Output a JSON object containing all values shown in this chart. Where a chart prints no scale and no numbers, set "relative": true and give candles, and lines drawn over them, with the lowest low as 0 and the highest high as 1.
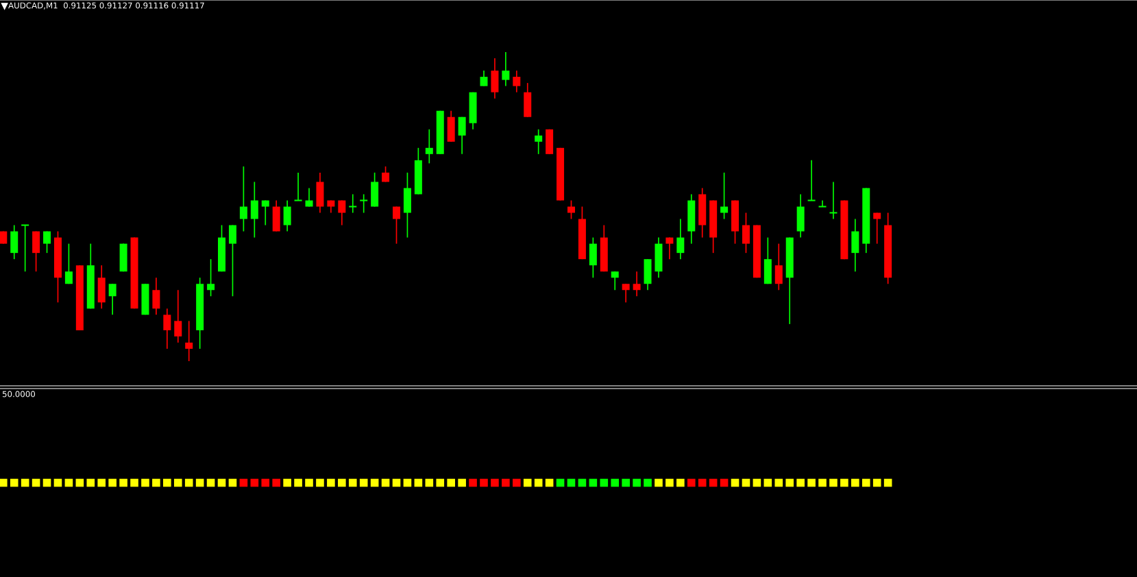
{
  "chart_data": [
    {
      "type": "candlestick",
      "title": "AUDCAD,M1  0.91125 0.91127 0.91116 0.91117",
      "relative": true,
      "categories": [
        null,
        null,
        null,
        null,
        null,
        null,
        null,
        null,
        null,
        null,
        null,
        null,
        null,
        null,
        null,
        null,
        null,
        null,
        null,
        null,
        null,
        null,
        null,
        null,
        null,
        null,
        null,
        null,
        null,
        null,
        null,
        null,
        null,
        null,
        null,
        null,
        null,
        null,
        null,
        null,
        null,
        null,
        null,
        null,
        null,
        null,
        null,
        null,
        null,
        null,
        null,
        null,
        null,
        null,
        null,
        null,
        null,
        null,
        null,
        null,
        null,
        null,
        null,
        null,
        null,
        null,
        null,
        null,
        null,
        null,
        null,
        null,
        null,
        null,
        null,
        null,
        null,
        null,
        null,
        null,
        null,
        null
      ],
      "ohlc": [
        [
          0.42,
          0.42,
          0.38,
          0.38
        ],
        [
          0.35,
          0.44,
          0.33,
          0.42
        ],
        [
          0.44,
          0.44,
          0.29,
          0.44
        ],
        [
          0.42,
          0.42,
          0.29,
          0.35
        ],
        [
          0.38,
          0.42,
          0.35,
          0.42
        ],
        [
          0.4,
          0.42,
          0.19,
          0.27
        ],
        [
          0.25,
          0.38,
          0.25,
          0.29
        ],
        [
          0.31,
          0.31,
          0.1,
          0.1
        ],
        [
          0.17,
          0.38,
          0.17,
          0.31
        ],
        [
          0.27,
          0.31,
          0.17,
          0.19
        ],
        [
          0.21,
          0.25,
          0.15,
          0.25
        ],
        [
          0.29,
          0.38,
          0.29,
          0.38
        ],
        [
          0.4,
          0.4,
          0.17,
          0.17
        ],
        [
          0.15,
          0.25,
          0.15,
          0.25
        ],
        [
          0.23,
          0.27,
          0.15,
          0.17
        ],
        [
          0.15,
          0.17,
          0.04,
          0.1
        ],
        [
          0.13,
          0.23,
          0.06,
          0.08
        ],
        [
          0.06,
          0.13,
          0,
          0.04
        ],
        [
          0.1,
          0.27,
          0.04,
          0.25
        ],
        [
          0.23,
          0.33,
          0.21,
          0.25
        ],
        [
          0.29,
          0.44,
          0.29,
          0.4
        ],
        [
          0.38,
          0.44,
          0.21,
          0.44
        ],
        [
          0.46,
          0.63,
          0.42,
          0.5
        ],
        [
          0.46,
          0.58,
          0.4,
          0.52
        ],
        [
          0.5,
          0.52,
          0.44,
          0.52
        ],
        [
          0.5,
          0.52,
          0.42,
          0.42
        ],
        [
          0.44,
          0.52,
          0.42,
          0.5
        ],
        [
          0.52,
          0.61,
          0.52,
          0.52
        ],
        [
          0.5,
          0.56,
          0.5,
          0.52
        ],
        [
          0.58,
          0.61,
          0.48,
          0.5
        ],
        [
          0.52,
          0.52,
          0.48,
          0.5
        ],
        [
          0.52,
          0.52,
          0.44,
          0.48
        ],
        [
          0.5,
          0.54,
          0.48,
          0.5
        ],
        [
          0.52,
          0.54,
          0.48,
          0.52
        ],
        [
          0.5,
          0.61,
          0.5,
          0.58
        ],
        [
          0.61,
          0.63,
          0.58,
          0.58
        ],
        [
          0.5,
          0.5,
          0.38,
          0.46
        ],
        [
          0.48,
          0.61,
          0.4,
          0.56
        ],
        [
          0.54,
          0.69,
          0.54,
          0.65
        ],
        [
          0.67,
          0.75,
          0.64,
          0.69
        ],
        [
          0.67,
          0.81,
          0.67,
          0.81
        ],
        [
          0.79,
          0.81,
          0.71,
          0.71
        ],
        [
          0.73,
          0.79,
          0.67,
          0.79
        ],
        [
          0.77,
          0.87,
          0.75,
          0.87
        ],
        [
          0.89,
          0.94,
          0.89,
          0.92
        ],
        [
          0.94,
          0.98,
          0.85,
          0.87
        ],
        [
          0.91,
          1.0,
          0.89,
          0.94
        ],
        [
          0.92,
          0.94,
          0.87,
          0.89
        ],
        [
          0.87,
          0.9,
          0.79,
          0.79
        ],
        [
          0.71,
          0.75,
          0.67,
          0.73
        ],
        [
          0.75,
          0.75,
          0.67,
          0.67
        ],
        [
          0.69,
          0.69,
          0.52,
          0.52
        ],
        [
          0.5,
          0.52,
          0.46,
          0.48
        ],
        [
          0.46,
          0.5,
          0.33,
          0.33
        ],
        [
          0.31,
          0.4,
          0.27,
          0.38
        ],
        [
          0.4,
          0.44,
          0.29,
          0.29
        ],
        [
          0.27,
          0.29,
          0.23,
          0.29
        ],
        [
          0.25,
          0.25,
          0.19,
          0.23
        ],
        [
          0.25,
          0.29,
          0.21,
          0.23
        ],
        [
          0.25,
          0.33,
          0.23,
          0.33
        ],
        [
          0.29,
          0.4,
          0.27,
          0.38
        ],
        [
          0.4,
          0.4,
          0.33,
          0.38
        ],
        [
          0.35,
          0.46,
          0.33,
          0.4
        ],
        [
          0.42,
          0.54,
          0.38,
          0.52
        ],
        [
          0.54,
          0.56,
          0.4,
          0.44
        ],
        [
          0.52,
          0.52,
          0.35,
          0.4
        ],
        [
          0.48,
          0.61,
          0.46,
          0.5
        ],
        [
          0.52,
          0.52,
          0.38,
          0.42
        ],
        [
          0.44,
          0.48,
          0.35,
          0.38
        ],
        [
          0.44,
          0.44,
          0.27,
          0.27
        ],
        [
          0.25,
          0.4,
          0.25,
          0.33
        ],
        [
          0.31,
          0.38,
          0.23,
          0.25
        ],
        [
          0.27,
          0.4,
          0.12,
          0.4
        ],
        [
          0.42,
          0.54,
          0.4,
          0.5
        ],
        [
          0.52,
          0.65,
          0.52,
          0.52
        ],
        [
          0.5,
          0.52,
          0.5,
          0.5
        ],
        [
          0.48,
          0.58,
          0.46,
          0.48
        ],
        [
          0.52,
          0.52,
          0.33,
          0.33
        ],
        [
          0.35,
          0.46,
          0.29,
          0.42
        ],
        [
          0.38,
          0.56,
          0.35,
          0.56
        ],
        [
          0.48,
          0.48,
          0.38,
          0.46
        ],
        [
          0.44,
          0.48,
          0.25,
          0.27
        ]
      ],
      "colors": [
        "#ff0000",
        "#00ff00",
        "#00ff00",
        "#ff0000",
        "#00ff00",
        "#ff0000",
        "#00ff00",
        "#ff0000",
        "#00ff00",
        "#ff0000",
        "#00ff00",
        "#00ff00",
        "#ff0000",
        "#00ff00",
        "#ff0000",
        "#ff0000",
        "#ff0000",
        "#ff0000",
        "#00ff00",
        "#00ff00",
        "#00ff00",
        "#00ff00",
        "#00ff00",
        "#00ff00",
        "#00ff00",
        "#ff0000",
        "#00ff00",
        "#00ff00",
        "#00ff00",
        "#ff0000",
        "#ff0000",
        "#ff0000",
        "#00ff00",
        "#00ff00",
        "#00ff00",
        "#ff0000",
        "#ff0000",
        "#00ff00",
        "#00ff00",
        "#00ff00",
        "#00ff00",
        "#ff0000",
        "#00ff00",
        "#00ff00",
        "#00ff00",
        "#ff0000",
        "#00ff00",
        "#ff0000",
        "#ff0000",
        "#00ff00",
        "#ff0000",
        "#ff0000",
        "#ff0000",
        "#ff0000",
        "#00ff00",
        "#ff0000",
        "#00ff00",
        "#ff0000",
        "#ff0000",
        "#00ff00",
        "#00ff00",
        "#ff0000",
        "#00ff00",
        "#00ff00",
        "#ff0000",
        "#ff0000",
        "#00ff00",
        "#ff0000",
        "#ff0000",
        "#ff0000",
        "#00ff00",
        "#ff0000",
        "#00ff00",
        "#00ff00",
        "#00ff00",
        "#00ff00",
        "#00ff00",
        "#ff0000",
        "#00ff00",
        "#00ff00",
        "#ff0000",
        "#ff0000"
      ]
    },
    {
      "type": "other",
      "title": "50.0000",
      "colors": [
        "#ffff00",
        "#ffff00",
        "#ffff00",
        "#ffff00",
        "#ffff00",
        "#ffff00",
        "#ffff00",
        "#ffff00",
        "#ffff00",
        "#ffff00",
        "#ffff00",
        "#ffff00",
        "#ffff00",
        "#ffff00",
        "#ffff00",
        "#ffff00",
        "#ffff00",
        "#ffff00",
        "#ffff00",
        "#ffff00",
        "#ffff00",
        "#ffff00",
        "#ff0000",
        "#ff0000",
        "#ff0000",
        "#ff0000",
        "#ffff00",
        "#ffff00",
        "#ffff00",
        "#ffff00",
        "#ffff00",
        "#ffff00",
        "#ffff00",
        "#ffff00",
        "#ffff00",
        "#ffff00",
        "#ffff00",
        "#ffff00",
        "#ffff00",
        "#ffff00",
        "#ffff00",
        "#ffff00",
        "#ffff00",
        "#ff0000",
        "#ff0000",
        "#ff0000",
        "#ff0000",
        "#ff0000",
        "#ffff00",
        "#ffff00",
        "#ffff00",
        "#00ff00",
        "#00ff00",
        "#00ff00",
        "#00ff00",
        "#00ff00",
        "#00ff00",
        "#00ff00",
        "#00ff00",
        "#00ff00",
        "#ffff00",
        "#ffff00",
        "#ffff00",
        "#ff0000",
        "#ff0000",
        "#ff0000",
        "#ff0000",
        "#ffff00",
        "#ffff00",
        "#ffff00",
        "#ffff00",
        "#ffff00",
        "#ffff00",
        "#ffff00",
        "#ffff00",
        "#ffff00",
        "#ffff00",
        "#ffff00",
        "#ffff00",
        "#ffff00",
        "#ffff00",
        "#ffff00"
      ]
    }
  ]
}
